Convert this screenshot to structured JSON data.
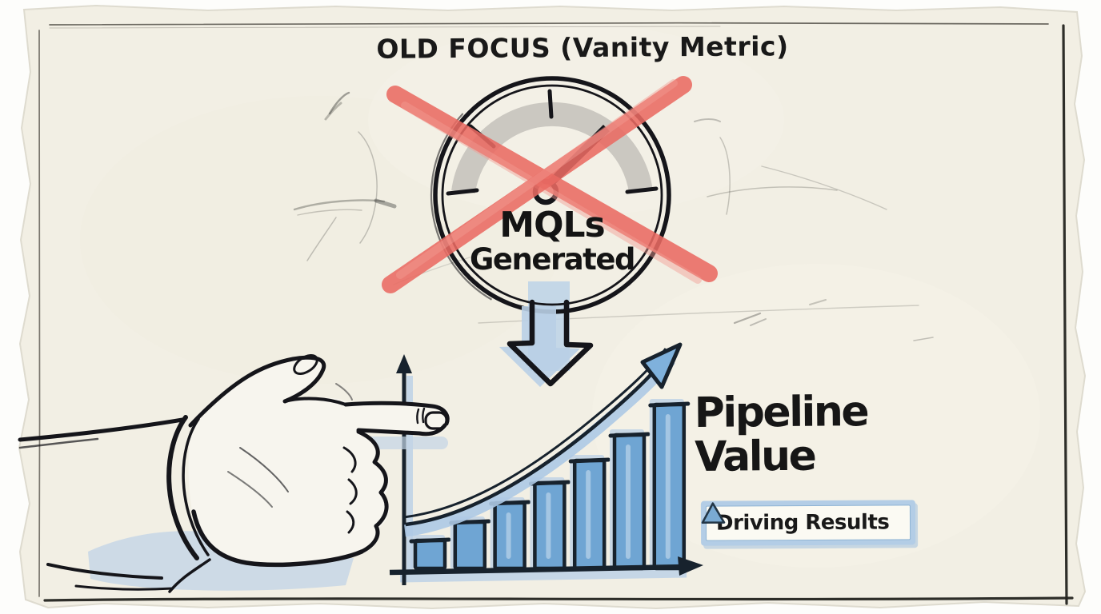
{
  "title": {
    "text": "OLD FOCUS (Vanity Metric)"
  },
  "gauge": {
    "icon": "speedometer-gauge-icon",
    "label_line1": "MQLs",
    "label_line2": "Generated",
    "overlay": "red-cross-out"
  },
  "flow": {
    "connector": "down-block-arrow"
  },
  "pointer": {
    "icon": "pointing-hand-icon"
  },
  "outcome": {
    "heading_line1": "Pipeline",
    "heading_line2": "Value",
    "badge": {
      "icon": "delta-triangle-icon",
      "label": "Driving Results"
    }
  },
  "chart_data": {
    "type": "bar",
    "title": "",
    "xlabel": "",
    "ylabel": "",
    "categories": [
      "",
      "",
      "",
      "",
      "",
      "",
      ""
    ],
    "values": [
      35,
      58,
      82,
      107,
      135,
      167,
      205
    ],
    "ylim": [
      0,
      220
    ],
    "grid": false,
    "legend": false,
    "annotations": [
      "hand-drawn rising curve arrow over bars"
    ]
  },
  "colors": {
    "paper": "#f2efe4",
    "ink": "#1b1b1b",
    "bar_blue": "#6fa5d3",
    "shadow_blue": "#b9cfe6",
    "cross_red": "#e96a62",
    "gauge_band_gray": "#cbc8c1",
    "badge_border_blue": "#a9c4de"
  }
}
